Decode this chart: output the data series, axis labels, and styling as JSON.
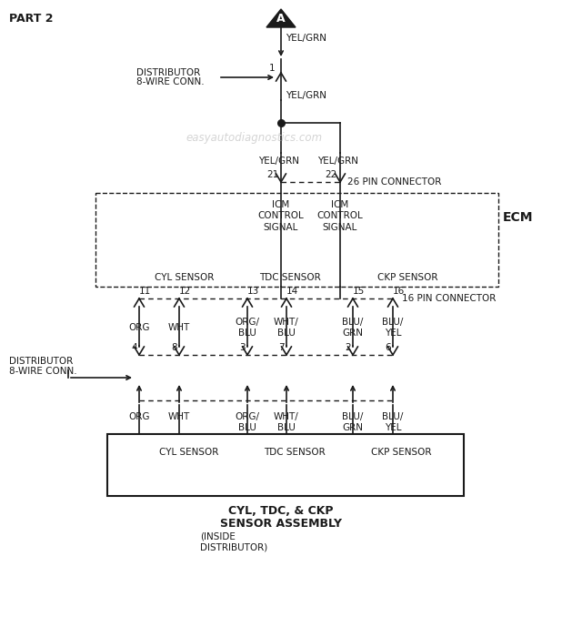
{
  "title": "PART 2",
  "bg_color": "#ffffff",
  "line_color": "#1a1a1a",
  "watermark": "easyautodiagnostics.com",
  "connector_A_label": "A",
  "wire_top_label": "YEL/GRN",
  "dist_conn_label1": "DISTRIBUTOR",
  "dist_conn_label2": "8-WIRE CONN.",
  "pin1_label": "1",
  "wire_mid_label": "YEL/GRN",
  "yel_grn_left": "YEL/GRN",
  "yel_grn_right": "YEL/GRN",
  "pin21": "21",
  "pin22": "22",
  "conn_26_label": "26 PIN CONNECTOR",
  "ecm_label": "ECM",
  "icm_left": "ICM\nCONTROL\nSIGNAL",
  "icm_right": "ICM\nCONTROL\nSIGNAL",
  "cyl_ecm": "CYL SENSOR",
  "tdc_ecm": "TDC SENSOR",
  "ckp_ecm": "CKP SENSOR",
  "pin_labels_top": [
    "11",
    "12",
    "13",
    "14",
    "15",
    "16"
  ],
  "conn_16_label": "16 PIN CONNECTOR",
  "wire_labels_mid": [
    "ORG",
    "WHT",
    "ORG/\nBLU",
    "WHT/\nBLU",
    "BLU/\nGRN",
    "BLU/\nYEL"
  ],
  "pin_labels_bot": [
    "4",
    "8",
    "3",
    "7",
    "2",
    "6"
  ],
  "dist_conn2_label1": "DISTRIBUTOR",
  "dist_conn2_label2": "8-WIRE CONN.",
  "wire_labels_bot": [
    "ORG",
    "WHT",
    "ORG/\nBLU",
    "WHT/\nBLU",
    "BLU/\nGRN",
    "BLU/\nYEL"
  ],
  "sensor_box_label_cyl": "CYL SENSOR",
  "sensor_box_label_tdc": "TDC SENSOR",
  "sensor_box_label_ckp": "CKP SENSOR",
  "assembly_label1": "CYL, TDC, & CKP",
  "assembly_label2": "SENSOR ASSEMBLY",
  "assembly_label3": "(INSIDE",
  "assembly_label4": "DISTRIBUTOR)"
}
